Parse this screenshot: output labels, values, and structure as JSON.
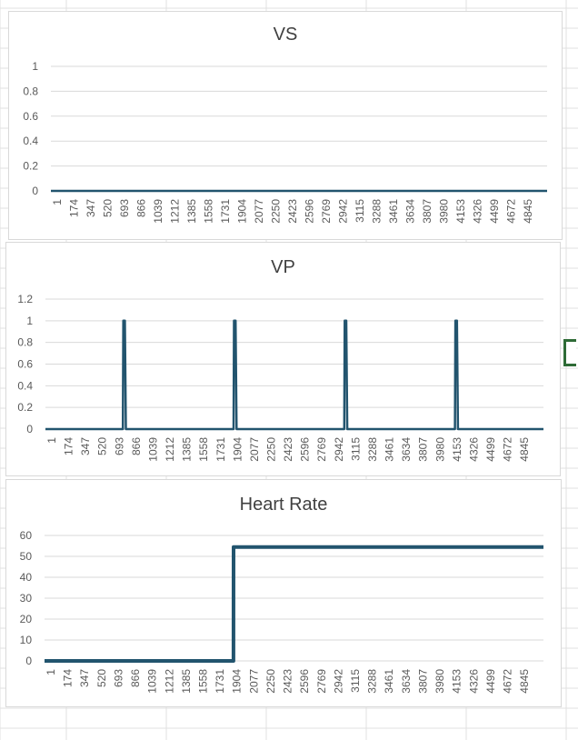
{
  "chart_data": [
    {
      "type": "line",
      "title": "VS",
      "xlabel": "",
      "ylabel": "",
      "ylim": [
        0,
        1
      ],
      "yticks": [
        "0",
        "0.2",
        "0.4",
        "0.6",
        "0.8",
        "1"
      ],
      "xlim": [
        1,
        4950
      ],
      "x_tick_labels": [
        "1",
        "174",
        "347",
        "520",
        "693",
        "866",
        "1039",
        "1212",
        "1385",
        "1558",
        "1731",
        "1904",
        "2077",
        "2250",
        "2423",
        "2596",
        "2769",
        "2942",
        "3115",
        "3288",
        "3461",
        "3634",
        "3807",
        "3980",
        "4153",
        "4326",
        "4499",
        "4672",
        "4845"
      ],
      "series": [
        {
          "x": [
            1,
            4950
          ],
          "values": [
            0,
            0
          ]
        }
      ],
      "line_color": "#22546e",
      "grid": true,
      "legend": "none"
    },
    {
      "type": "line",
      "title": "VP",
      "xlabel": "",
      "ylabel": "",
      "ylim": [
        0,
        1.2
      ],
      "yticks": [
        "0",
        "0.2",
        "0.4",
        "0.6",
        "0.8",
        "1",
        "1.2"
      ],
      "xlim": [
        1,
        4950
      ],
      "x_tick_labels": [
        "1",
        "174",
        "347",
        "520",
        "693",
        "866",
        "1039",
        "1212",
        "1385",
        "1558",
        "1731",
        "1904",
        "2077",
        "2250",
        "2423",
        "2596",
        "2769",
        "2942",
        "3115",
        "3288",
        "3461",
        "3634",
        "3807",
        "3980",
        "4153",
        "4326",
        "4499",
        "4672",
        "4845"
      ],
      "series": [
        {
          "x": [
            1,
            770,
            775,
            790,
            800,
            1870,
            1875,
            1890,
            1900,
            2970,
            2975,
            2990,
            3000,
            4070,
            4075,
            4090,
            4100,
            4950
          ],
          "values": [
            0,
            0,
            1,
            1,
            0,
            0,
            1,
            1,
            0,
            0,
            1,
            1,
            0,
            0,
            1,
            1,
            0,
            0
          ]
        }
      ],
      "line_color": "#22546e",
      "grid": true,
      "legend": "none"
    },
    {
      "type": "line",
      "title": "Heart Rate",
      "xlabel": "",
      "ylabel": "",
      "ylim": [
        0,
        60
      ],
      "yticks": [
        "0",
        "10",
        "20",
        "30",
        "40",
        "50",
        "60"
      ],
      "xlim": [
        1,
        4950
      ],
      "x_tick_labels": [
        "1",
        "174",
        "347",
        "520",
        "693",
        "866",
        "1039",
        "1212",
        "1385",
        "1558",
        "1731",
        "1904",
        "2077",
        "2250",
        "2423",
        "2596",
        "2769",
        "2942",
        "3115",
        "3288",
        "3461",
        "3634",
        "3807",
        "3980",
        "4153",
        "4326",
        "4499",
        "4672",
        "4845"
      ],
      "series": [
        {
          "x": [
            1,
            1875,
            1876,
            4950
          ],
          "values": [
            0,
            0,
            54.5,
            54.5
          ]
        }
      ],
      "line_color": "#22546e",
      "grid": true,
      "legend": "none"
    }
  ]
}
